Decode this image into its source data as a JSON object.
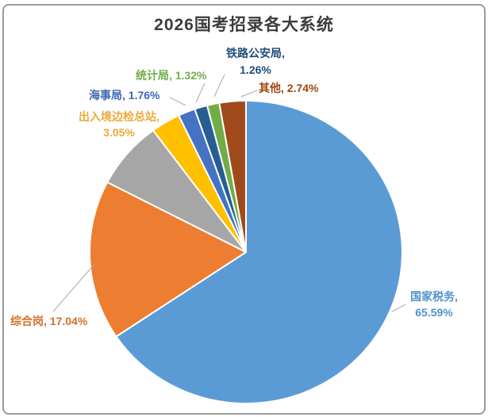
{
  "title": "2026国考招录各大系统",
  "chart_data": {
    "type": "pie",
    "title": "2026国考招录各大系统",
    "start_angle": "12-o-clock",
    "direction": "clockwise",
    "legend": "none",
    "slices": [
      {
        "id": "guojia-shuiwu",
        "label": "国家税务",
        "value": 65.59,
        "display": "国家税务, 65.59%",
        "color": "#5B9BD5"
      },
      {
        "id": "zonghe-gang",
        "label": "综合岗",
        "value": 17.04,
        "display": "综合岗, 17.04%",
        "color": "#ED7D31"
      },
      {
        "id": "unlabeled-gray",
        "label": "",
        "value": 7.24,
        "display": "",
        "color": "#A6A6A6",
        "estimated": true
      },
      {
        "id": "churujing-bianjian",
        "label": "出入境边检总站",
        "value": 3.05,
        "display": "出入境边检总站, 3.05%",
        "color": "#FFC000"
      },
      {
        "id": "haishi-ju",
        "label": "海事局",
        "value": 1.76,
        "display": "海事局, 1.76%",
        "color": "#4472C4"
      },
      {
        "id": "tongji-ju",
        "label": "统计局",
        "value": 1.32,
        "display": "统计局, 1.32%",
        "color": "#275E91"
      },
      {
        "id": "tielu-gongan",
        "label": "铁路公安局",
        "value": 1.26,
        "display": "铁路公安局, 1.26%",
        "color": "#70AD47"
      },
      {
        "id": "qita",
        "label": "其他",
        "value": 2.74,
        "display": "其他, 2.74%",
        "color": "#A04A1B"
      }
    ],
    "slice_order_note": "clockwise from top: 国家税务, 综合岗, unlabeled-gray, 出入境边检总站, 海事局, 统计局(green slice), 铁路公安局(dark blue slice), 其他"
  },
  "callouts": {
    "tielu": {
      "line1": "铁路公安局,",
      "line2": "1.26%",
      "color": "#1F4E79"
    },
    "qita": {
      "line1": "其他, 2.74%",
      "color": "#9E480E"
    },
    "tongji": {
      "line1": "统计局, 1.32%",
      "color": "#70AD47"
    },
    "haishi": {
      "line1": "海事局, 1.76%",
      "color": "#3D69B1"
    },
    "churujing": {
      "line1": "出入境边检总站,",
      "line2": "3.05%",
      "color": "#EDA83C"
    },
    "zonghe": {
      "line1": "综合岗, 17.04%",
      "color": "#D2712B"
    },
    "guojia": {
      "line1": "国家税务,",
      "line2": "65.59%",
      "color": "#4E93CE"
    }
  },
  "colors": {
    "card_border": "#9B9B9B",
    "title_text": "#3C3C3C",
    "leader_line": "#A9A9A9",
    "slice_stroke": "#FFFFFF"
  }
}
